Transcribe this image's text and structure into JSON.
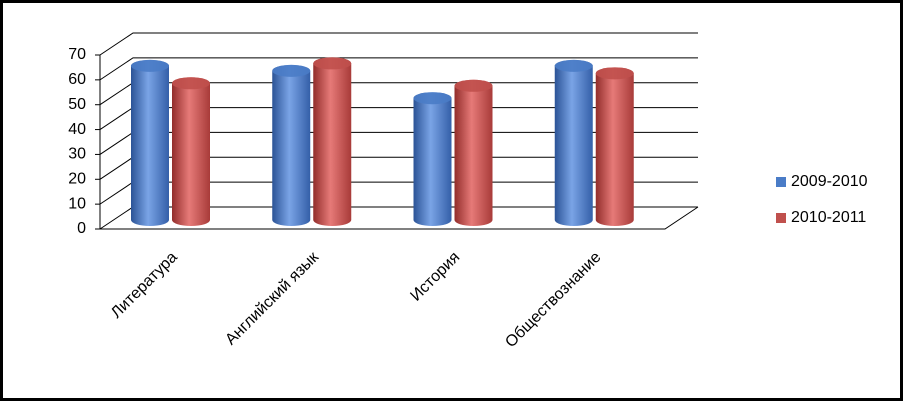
{
  "chart_data": {
    "type": "bar3d",
    "categories": [
      "Литература",
      "Английский язык",
      "История",
      "Обществознание"
    ],
    "series": [
      {
        "name": "2009-2010",
        "color": "#4a7cc7",
        "values": [
          62,
          60,
          49,
          62
        ]
      },
      {
        "name": "2010-2011",
        "color": "#c0504d",
        "values": [
          55,
          63,
          54,
          59
        ]
      }
    ],
    "ylim": [
      0,
      70
    ],
    "yticks": [
      0,
      10,
      20,
      30,
      40,
      50,
      60,
      70
    ],
    "grid": true,
    "legend": "right"
  }
}
